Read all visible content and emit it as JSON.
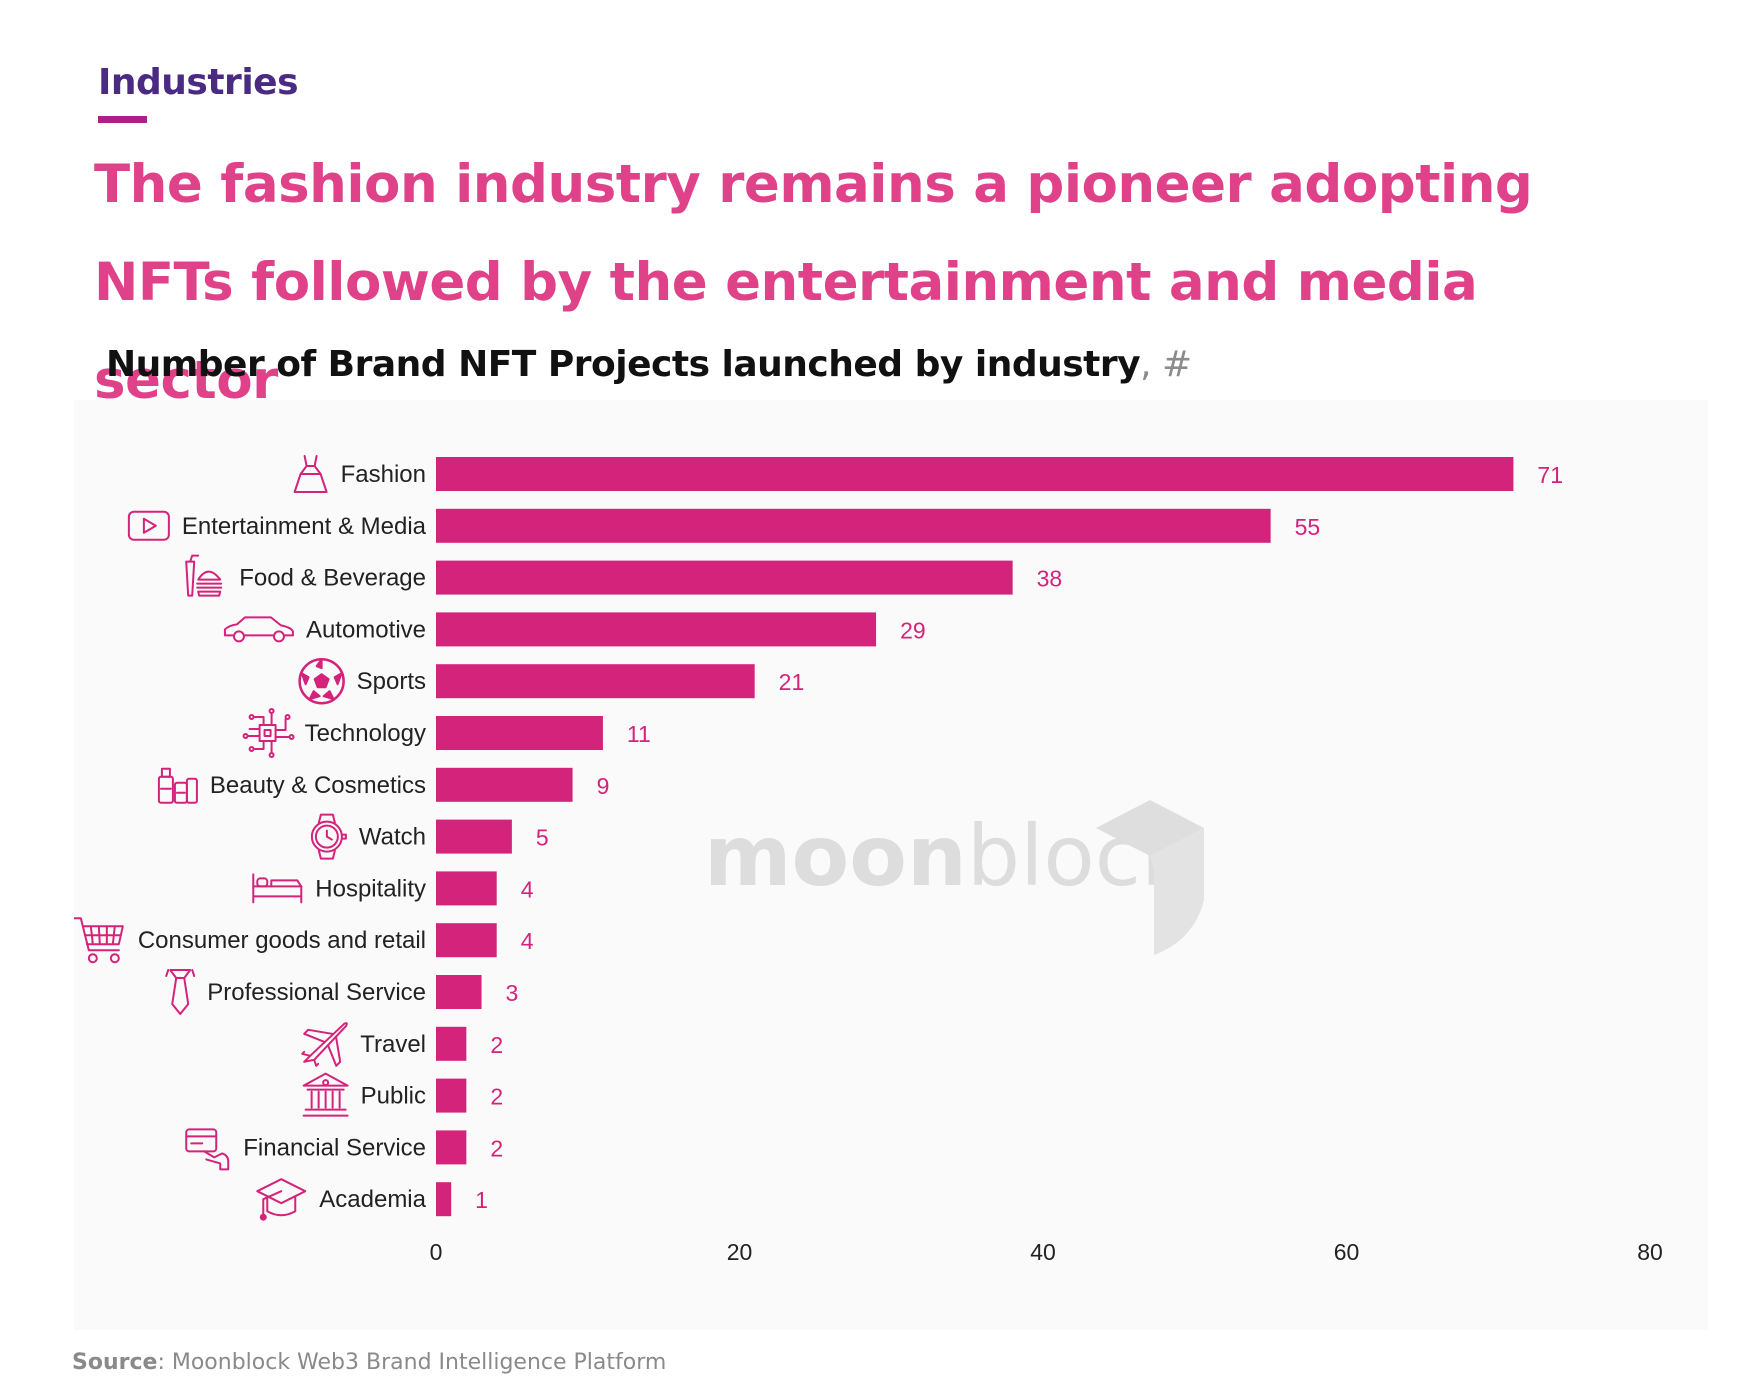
{
  "header": {
    "kicker": "Industries",
    "headline": "The fashion industry remains a pioneer adopting NFTs followed by the entertainment and media sector"
  },
  "chart_title": {
    "main": "Number of Brand NFT Projects launched by industry",
    "unit": ", #"
  },
  "watermark": {
    "bold_part": "moon",
    "light_part": "block"
  },
  "colors": {
    "bar": "#d4237a",
    "value_label": "#d4237a",
    "icon": "#d4237a",
    "kicker": "#4b2a82",
    "headline": "#e0428a"
  },
  "chart_data": {
    "type": "bar",
    "orientation": "horizontal",
    "title": "Number of Brand NFT Projects launched by industry",
    "categories": [
      "Fashion",
      "Entertainment & Media",
      "Food & Beverage",
      "Automotive",
      "Sports",
      "Technology",
      "Beauty & Cosmetics",
      "Watch",
      "Hospitality",
      "Consumer goods and retail",
      "Professional Service",
      "Travel",
      "Public",
      "Financial Service",
      "Academia"
    ],
    "values": [
      71,
      55,
      38,
      29,
      21,
      11,
      9,
      5,
      4,
      4,
      3,
      2,
      2,
      2,
      1
    ],
    "icons": [
      "dress-icon",
      "play-icon",
      "food-icon",
      "car-icon",
      "soccer-ball-icon",
      "chip-icon",
      "cosmetics-icon",
      "watch-icon",
      "bed-icon",
      "cart-icon",
      "tie-icon",
      "plane-icon",
      "bank-icon",
      "card-icon",
      "graduation-cap-icon"
    ],
    "xlim": [
      0,
      80
    ],
    "xticks": [
      0,
      20,
      40,
      60,
      80
    ],
    "xlabel": "",
    "ylabel": "",
    "grid": false,
    "legend": "none"
  },
  "source": {
    "label": "Source",
    "text": ": Moonblock Web3 Brand Intelligence Platform"
  }
}
